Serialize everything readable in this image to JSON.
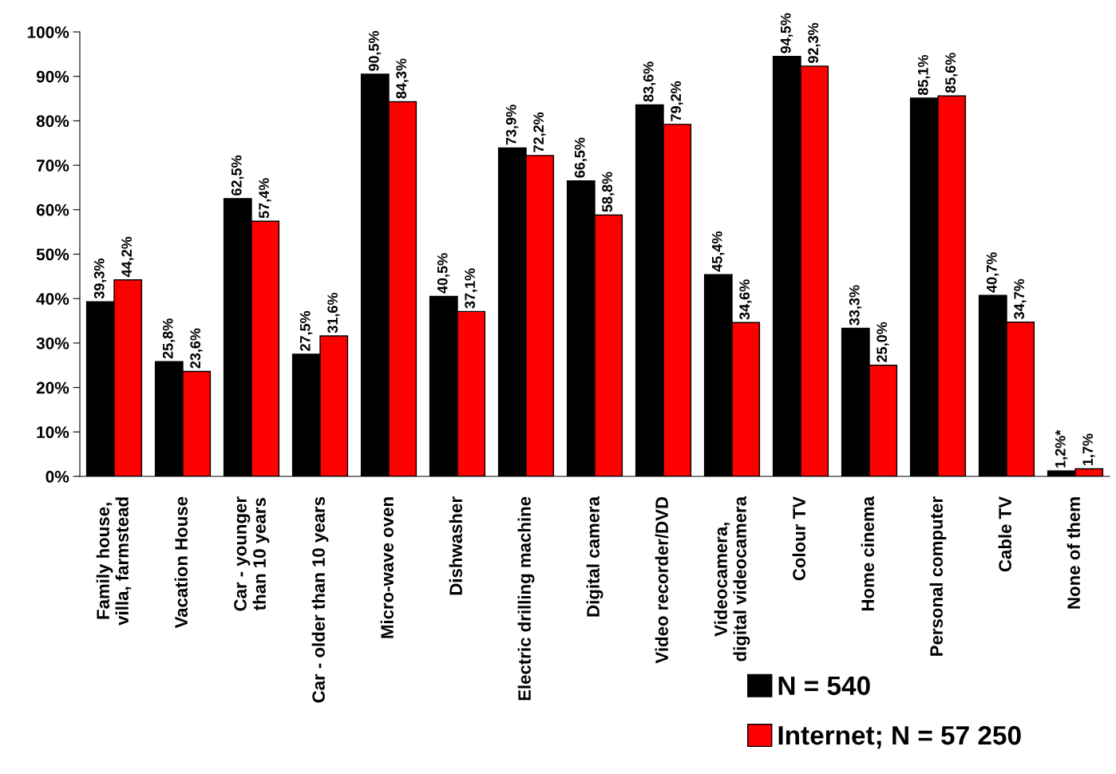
{
  "chart_data": {
    "type": "bar",
    "categories": [
      "Family house,\nvilla, farmstead",
      "Vacation House",
      "Car - younger\nthan 10 years",
      "Car - older than 10 years",
      "Micro-wave oven",
      "Dishwasher",
      "Electric drilling machine",
      "Digital camera",
      "Video recorder/DVD",
      "Videocamera,\ndigital videocamera",
      "Colour TV",
      "Home cinema",
      "Personal computer",
      "Cable TV",
      "None of them"
    ],
    "series": [
      {
        "name": "N = 540",
        "color": "#000000",
        "values": [
          39.3,
          25.8,
          62.5,
          27.5,
          90.5,
          40.5,
          73.9,
          66.5,
          83.6,
          45.4,
          94.5,
          33.3,
          85.1,
          40.7,
          1.2
        ],
        "value_labels": [
          "39,3%",
          "25,8%",
          "62,5%",
          "27,5%",
          "90,5%",
          "40,5%",
          "73,9%",
          "66,5%",
          "83,6%",
          "45,4%",
          "94,5%",
          "33,3%",
          "85,1%",
          "40,7%",
          "1,2%*"
        ]
      },
      {
        "name": "Internet; N = 57 250",
        "color": "#ff0000",
        "values": [
          44.2,
          23.6,
          57.4,
          31.6,
          84.3,
          37.1,
          72.2,
          58.8,
          79.2,
          34.6,
          92.3,
          25.0,
          85.6,
          34.7,
          1.7
        ],
        "value_labels": [
          "44,2%",
          "23,6%",
          "57,4%",
          "31,6%",
          "84,3%",
          "37,1%",
          "72,2%",
          "58,8%",
          "79,2%",
          "34,6%",
          "92,3%",
          "25,0%",
          "85,6%",
          "34,7%",
          "1,7%"
        ]
      }
    ],
    "ylim": [
      0,
      100
    ],
    "yticks": [
      {
        "value": 0,
        "label": "0%"
      },
      {
        "value": 10,
        "label": "10%"
      },
      {
        "value": 20,
        "label": "20%"
      },
      {
        "value": 30,
        "label": "30%"
      },
      {
        "value": 40,
        "label": "40%"
      },
      {
        "value": 50,
        "label": "50%"
      },
      {
        "value": 60,
        "label": "60%"
      },
      {
        "value": 70,
        "label": "70%"
      },
      {
        "value": 80,
        "label": "80%"
      },
      {
        "value": 90,
        "label": "90%"
      },
      {
        "value": 100,
        "label": "100%"
      }
    ],
    "grid": false,
    "legend": "bottom right"
  }
}
